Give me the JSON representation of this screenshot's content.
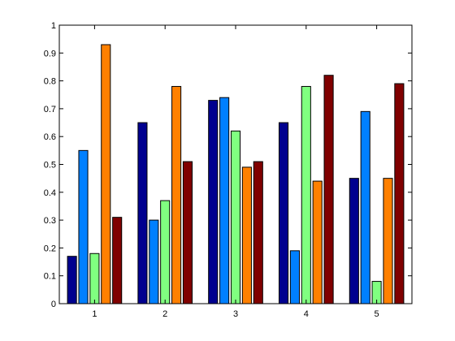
{
  "chart_data": {
    "type": "bar",
    "categories": [
      "1",
      "2",
      "3",
      "4",
      "5"
    ],
    "series": [
      {
        "values": [
          0.17,
          0.65,
          0.73,
          0.65,
          0.45
        ]
      },
      {
        "values": [
          0.55,
          0.3,
          0.74,
          0.19,
          0.69
        ]
      },
      {
        "values": [
          0.18,
          0.37,
          0.62,
          0.78,
          0.08
        ]
      },
      {
        "values": [
          0.93,
          0.78,
          0.49,
          0.44,
          0.45
        ]
      },
      {
        "values": [
          0.31,
          0.51,
          0.51,
          0.82,
          0.79
        ]
      }
    ],
    "colors": [
      "#00008f",
      "#0080ff",
      "#80ff80",
      "#ff8000",
      "#800000"
    ],
    "ylim": [
      0,
      1
    ],
    "xlim": [
      0.5,
      5.5
    ],
    "yticks": [
      "0",
      "0.1",
      "0.2",
      "0.3",
      "0.4",
      "0.5",
      "0.6",
      "0.7",
      "0.8",
      "0.9",
      "1"
    ],
    "title": "",
    "xlabel": "",
    "ylabel": "",
    "grid": false,
    "legend": "none"
  }
}
